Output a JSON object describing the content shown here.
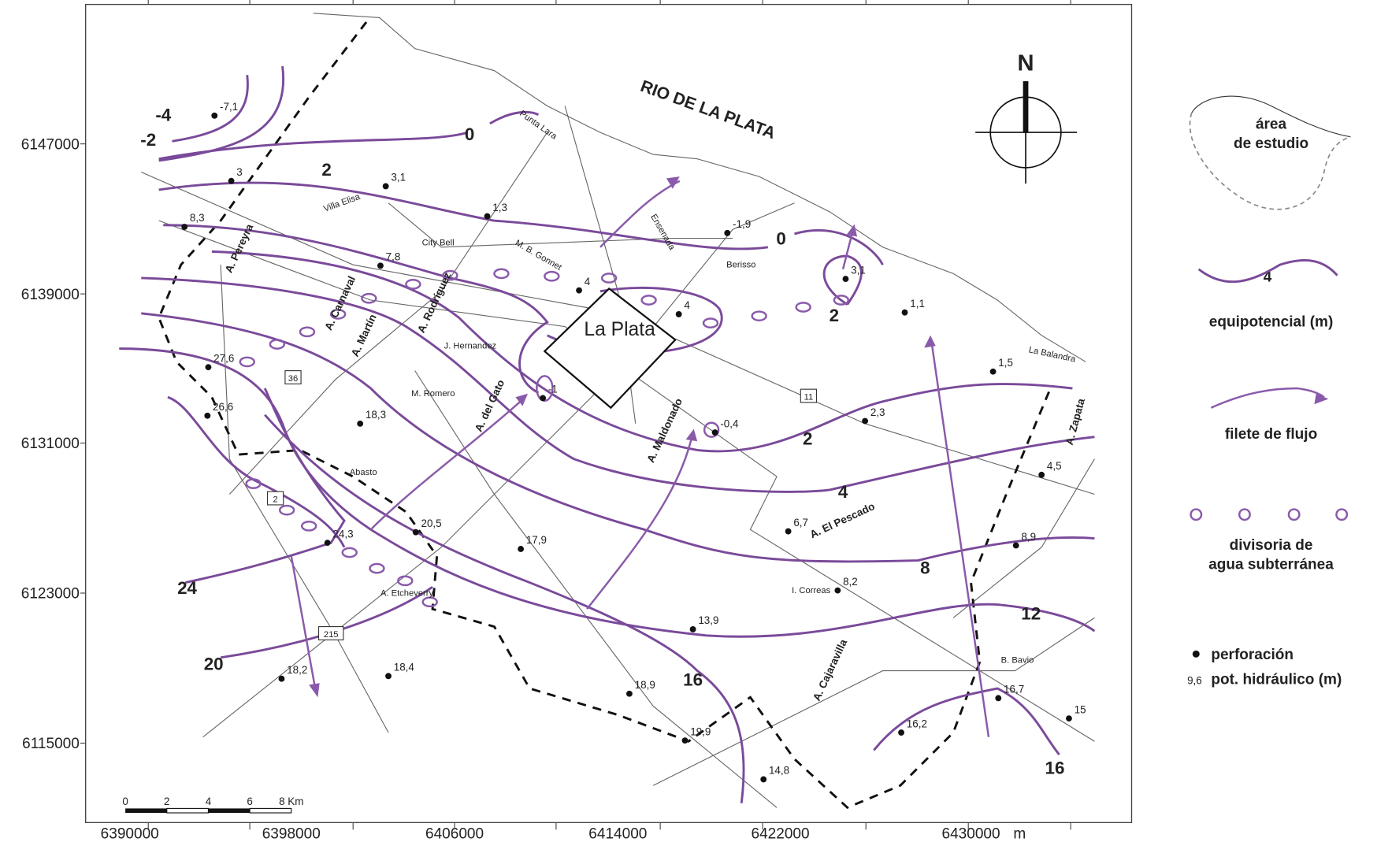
{
  "axes": {
    "x_ticks": [
      "6390000",
      "6398000",
      "6406000",
      "6414000",
      "6422000",
      "6430000"
    ],
    "x_unit": "m",
    "y_ticks": [
      "6147000",
      "6139000",
      "6131000",
      "6123000",
      "6115000"
    ]
  },
  "map": {
    "river": "RIO DE LA PLATA",
    "city": "La Plata",
    "north": "N",
    "places": [
      "Villa Elisa",
      "City Bell",
      "M. B. Gonnet",
      "Punta Lara",
      "Ensenada",
      "Berisso",
      "J. Hernandez",
      "M. Romero",
      "Abasto",
      "A. Etcheverry",
      "I. Correas",
      "B. Bavio",
      "La Balandra"
    ],
    "streams": [
      "A. Pereyra",
      "A. Carnaval",
      "A. Martín",
      "A. Rodríguez",
      "A. del Gato",
      "A. Maldonado",
      "A. El Pescado",
      "A. Cajaravilla",
      "A. Zapata"
    ],
    "routes": [
      "36",
      "2",
      "215",
      "11"
    ],
    "contour_labels": [
      "-4",
      "-2",
      "0",
      "2",
      "0",
      "2",
      "2",
      "4",
      "8",
      "12",
      "16",
      "16",
      "24",
      "20"
    ],
    "wells": [
      "-7,1",
      "3",
      "3,1",
      "1,3",
      "8,3",
      "7,8",
      "4",
      "4",
      "-1,9",
      "3,1",
      "1,1",
      "1,5",
      "27,6",
      "26,6",
      "18,3",
      "-1",
      "-0,4",
      "2,3",
      "4,5",
      "20,5",
      "24,3",
      "17,9",
      "6,7",
      "8,9",
      "8,2",
      "13,9",
      "18,2",
      "18,4",
      "18,9",
      "19,9",
      "14,8",
      "16,2",
      "16,7",
      "15"
    ],
    "scale": [
      "0",
      "2",
      "4",
      "6",
      "8 Km"
    ]
  },
  "legend": {
    "study_area": [
      "área",
      "de estudio"
    ],
    "equipotential_sample": "4",
    "equipotential": "equipotencial (m)",
    "flow": "filete de flujo",
    "divide": [
      "divisoria de",
      "agua subterránea"
    ],
    "well": "perforación",
    "head_sample": "9,6",
    "head": "pot. hidráulico (m)"
  }
}
